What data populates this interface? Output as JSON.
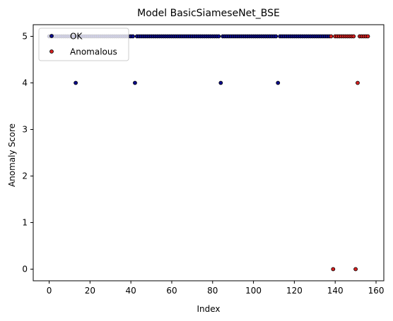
{
  "chart_data": {
    "type": "scatter",
    "title": "Model BasicSiameseNet_BSE",
    "xlabel": "Index",
    "ylabel": "Anomaly Score",
    "xlim": [
      -7.8,
      163.8
    ],
    "ylim": [
      -0.25,
      5.25
    ],
    "xticks": [
      0,
      20,
      40,
      60,
      80,
      100,
      120,
      140,
      160
    ],
    "yticks": [
      0,
      1,
      2,
      3,
      4,
      5
    ],
    "grid": false,
    "legend_position": "top-left",
    "series": [
      {
        "name": "OK",
        "color": "#0b0b8c",
        "points": [
          [
            0,
            5
          ],
          [
            1,
            5
          ],
          [
            2,
            5
          ],
          [
            3,
            5
          ],
          [
            4,
            5
          ],
          [
            5,
            5
          ],
          [
            6,
            5
          ],
          [
            7,
            5
          ],
          [
            8,
            5
          ],
          [
            9,
            5
          ],
          [
            10,
            5
          ],
          [
            11,
            5
          ],
          [
            12,
            5
          ],
          [
            13,
            4
          ],
          [
            14,
            5
          ],
          [
            15,
            5
          ],
          [
            16,
            5
          ],
          [
            17,
            5
          ],
          [
            18,
            5
          ],
          [
            19,
            5
          ],
          [
            20,
            5
          ],
          [
            21,
            5
          ],
          [
            22,
            5
          ],
          [
            23,
            5
          ],
          [
            24,
            5
          ],
          [
            25,
            5
          ],
          [
            26,
            5
          ],
          [
            27,
            5
          ],
          [
            28,
            5
          ],
          [
            29,
            5
          ],
          [
            30,
            5
          ],
          [
            31,
            5
          ],
          [
            32,
            5
          ],
          [
            33,
            5
          ],
          [
            34,
            5
          ],
          [
            35,
            5
          ],
          [
            36,
            5
          ],
          [
            37,
            5
          ],
          [
            38,
            5
          ],
          [
            39,
            5
          ],
          [
            40,
            5
          ],
          [
            41,
            5
          ],
          [
            42,
            4
          ],
          [
            43,
            5
          ],
          [
            44,
            5
          ],
          [
            45,
            5
          ],
          [
            46,
            5
          ],
          [
            47,
            5
          ],
          [
            48,
            5
          ],
          [
            49,
            5
          ],
          [
            50,
            5
          ],
          [
            51,
            5
          ],
          [
            52,
            5
          ],
          [
            53,
            5
          ],
          [
            54,
            5
          ],
          [
            55,
            5
          ],
          [
            56,
            5
          ],
          [
            57,
            5
          ],
          [
            58,
            5
          ],
          [
            59,
            5
          ],
          [
            60,
            5
          ],
          [
            61,
            5
          ],
          [
            62,
            5
          ],
          [
            63,
            5
          ],
          [
            64,
            5
          ],
          [
            65,
            5
          ],
          [
            66,
            5
          ],
          [
            67,
            5
          ],
          [
            68,
            5
          ],
          [
            69,
            5
          ],
          [
            70,
            5
          ],
          [
            71,
            5
          ],
          [
            72,
            5
          ],
          [
            73,
            5
          ],
          [
            74,
            5
          ],
          [
            75,
            5
          ],
          [
            76,
            5
          ],
          [
            77,
            5
          ],
          [
            78,
            5
          ],
          [
            79,
            5
          ],
          [
            80,
            5
          ],
          [
            81,
            5
          ],
          [
            82,
            5
          ],
          [
            83,
            5
          ],
          [
            84,
            4
          ],
          [
            85,
            5
          ],
          [
            86,
            5
          ],
          [
            87,
            5
          ],
          [
            88,
            5
          ],
          [
            89,
            5
          ],
          [
            90,
            5
          ],
          [
            91,
            5
          ],
          [
            92,
            5
          ],
          [
            93,
            5
          ],
          [
            94,
            5
          ],
          [
            95,
            5
          ],
          [
            96,
            5
          ],
          [
            97,
            5
          ],
          [
            98,
            5
          ],
          [
            99,
            5
          ],
          [
            100,
            5
          ],
          [
            101,
            5
          ],
          [
            102,
            5
          ],
          [
            103,
            5
          ],
          [
            104,
            5
          ],
          [
            105,
            5
          ],
          [
            106,
            5
          ],
          [
            107,
            5
          ],
          [
            108,
            5
          ],
          [
            109,
            5
          ],
          [
            110,
            5
          ],
          [
            111,
            5
          ],
          [
            112,
            4
          ],
          [
            113,
            5
          ],
          [
            114,
            5
          ],
          [
            115,
            5
          ],
          [
            116,
            5
          ],
          [
            117,
            5
          ],
          [
            118,
            5
          ],
          [
            119,
            5
          ],
          [
            120,
            5
          ],
          [
            121,
            5
          ],
          [
            122,
            5
          ],
          [
            123,
            5
          ],
          [
            124,
            5
          ],
          [
            125,
            5
          ],
          [
            126,
            5
          ],
          [
            127,
            5
          ],
          [
            128,
            5
          ],
          [
            129,
            5
          ],
          [
            130,
            5
          ],
          [
            131,
            5
          ],
          [
            132,
            5
          ],
          [
            133,
            5
          ],
          [
            134,
            5
          ],
          [
            135,
            5
          ],
          [
            136,
            5
          ],
          [
            137,
            5
          ]
        ]
      },
      {
        "name": "Anomalous",
        "color": "#d62020",
        "points": [
          [
            138,
            5
          ],
          [
            139,
            0
          ],
          [
            140,
            5
          ],
          [
            141,
            5
          ],
          [
            142,
            5
          ],
          [
            143,
            5
          ],
          [
            144,
            5
          ],
          [
            145,
            5
          ],
          [
            146,
            5
          ],
          [
            147,
            5
          ],
          [
            148,
            5
          ],
          [
            149,
            5
          ],
          [
            150,
            0
          ],
          [
            151,
            4
          ],
          [
            152,
            5
          ],
          [
            153,
            5
          ],
          [
            154,
            5
          ],
          [
            155,
            5
          ],
          [
            156,
            5
          ]
        ]
      }
    ]
  }
}
